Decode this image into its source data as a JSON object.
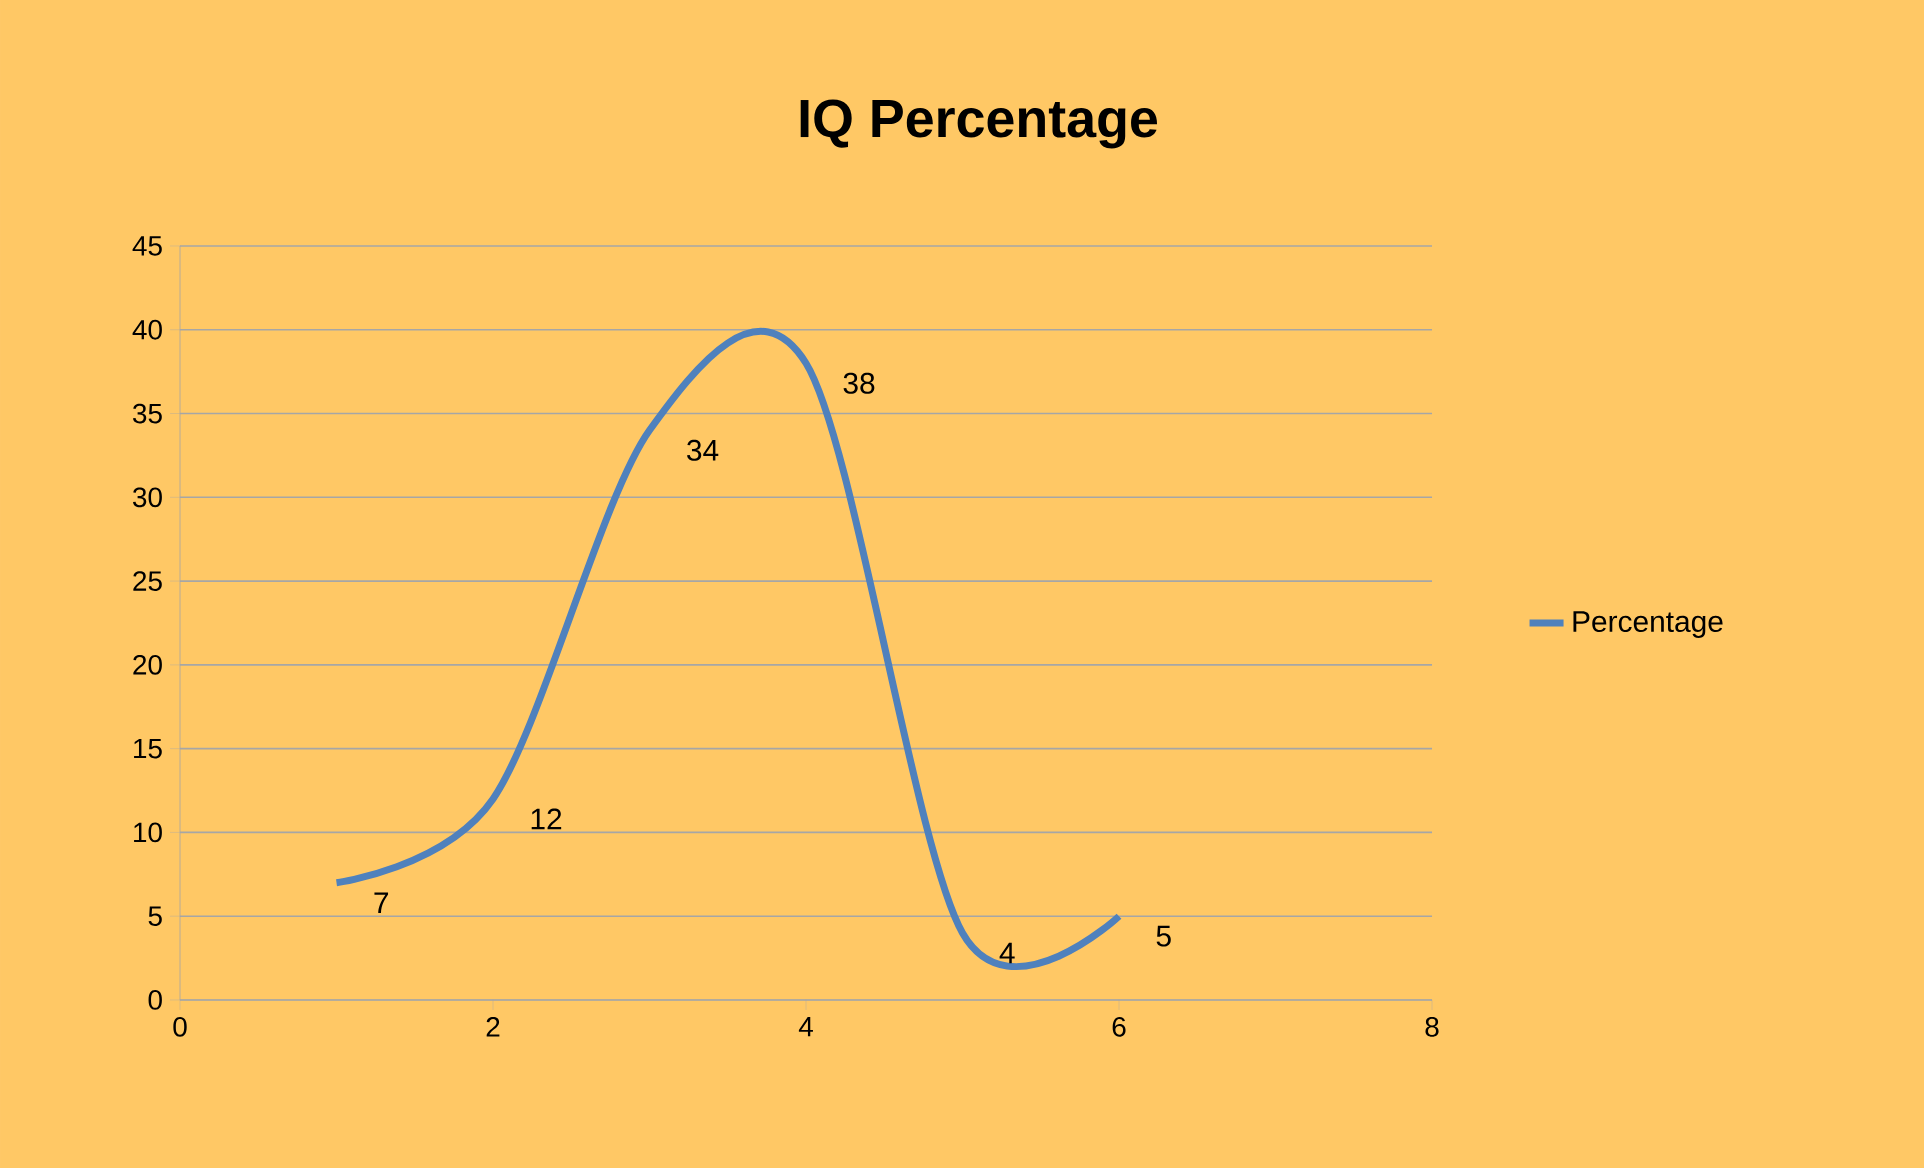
{
  "chart_data": {
    "type": "line",
    "title": "IQ Percentage",
    "x": [
      1,
      2,
      3,
      4,
      5,
      6
    ],
    "series": [
      {
        "name": "Percentage",
        "color": "#4f81bd",
        "values": [
          7,
          12,
          34,
          38,
          4,
          5
        ]
      }
    ],
    "xlim": [
      0,
      8
    ],
    "xticks": [
      0,
      2,
      4,
      6,
      8
    ],
    "ylim": [
      0,
      45
    ],
    "yticks": [
      0,
      5,
      10,
      15,
      20,
      25,
      30,
      35,
      40,
      45
    ],
    "grid": "y",
    "legend": "right",
    "data_labels": true,
    "marker": "none",
    "line_style": "solid"
  }
}
